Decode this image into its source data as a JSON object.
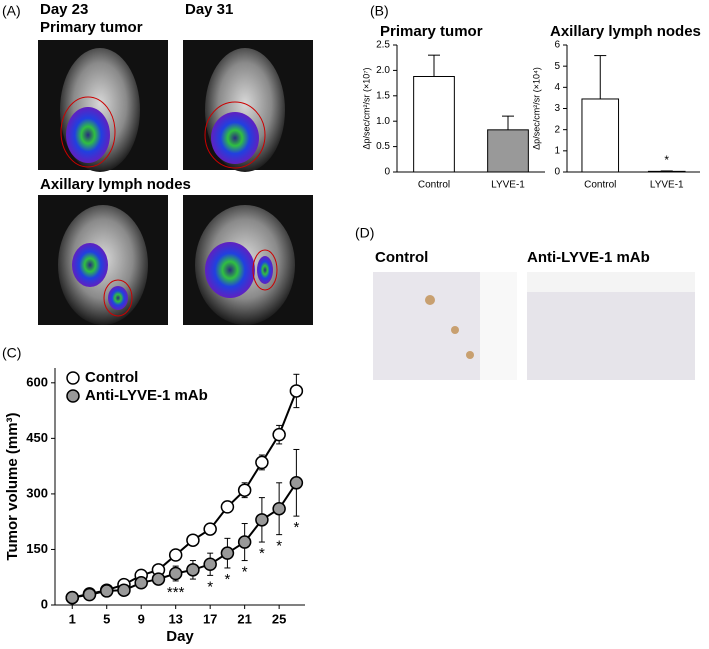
{
  "panels": [
    "(A)",
    "(B)",
    "(C)",
    "(D)"
  ],
  "panel_a": {
    "day_labels": [
      "Day 23",
      "Day 31"
    ],
    "row_labels": [
      "Primary tumor",
      "Axillary lymph nodes"
    ]
  },
  "panel_d": {
    "labels": [
      "Control",
      "Anti-LYVE-1 mAb"
    ]
  },
  "chart_data": [
    {
      "type": "bar",
      "title": "Primary tumor",
      "y_label": "Δp/sec/cm²/sr (×10⁷)",
      "categories": [
        "Control",
        "LYVE-1"
      ],
      "values": [
        1.88,
        0.83
      ],
      "errors": [
        0.42,
        0.27
      ],
      "colors": [
        "#ffffff",
        "#999999"
      ],
      "ylim": [
        0,
        2.5
      ],
      "yticks": [
        0,
        0.5,
        {
          "value": 1,
          "label": "1.0"
        },
        1.5,
        {
          "value": 2,
          "label": "2.0"
        },
        2.5
      ]
    },
    {
      "type": "bar",
      "title": "Axillary lymph nodes",
      "y_label": "Δp/sec/cm²/sr (×10⁴)",
      "categories": [
        "Control",
        "LYVE-1"
      ],
      "values": [
        3.45,
        0.03
      ],
      "errors": [
        2.05,
        0.02
      ],
      "colors": [
        "#ffffff",
        "#999999"
      ],
      "ylim": [
        0,
        6
      ],
      "yticks": [
        0,
        1,
        2,
        3,
        4,
        5,
        6
      ],
      "annotations": [
        {
          "x": "LYVE-1",
          "text": "*"
        }
      ]
    },
    {
      "type": "line",
      "x_label": "Day",
      "y_label": "Tumor volume (mm³)",
      "x": [
        1,
        3,
        5,
        7,
        9,
        11,
        13,
        15,
        17,
        19,
        21,
        23,
        25,
        27
      ],
      "series": [
        {
          "name": "Control",
          "color": "#000000",
          "marker_fill": "#ffffff",
          "values": [
            20,
            30,
            40,
            55,
            80,
            95,
            135,
            175,
            205,
            265,
            310,
            385,
            460,
            578
          ],
          "errors": [
            5,
            5,
            5,
            8,
            8,
            10,
            10,
            12,
            15,
            15,
            20,
            20,
            25,
            45
          ]
        },
        {
          "name": "Anti-LYVE-1 mAb",
          "color": "#000000",
          "marker_fill": "#999999",
          "values": [
            20,
            28,
            38,
            40,
            60,
            70,
            85,
            95,
            110,
            140,
            170,
            230,
            260,
            330
          ],
          "errors": [
            5,
            5,
            5,
            5,
            8,
            10,
            20,
            25,
            30,
            40,
            50,
            60,
            70,
            90
          ]
        }
      ],
      "annotations": [
        {
          "x": 13,
          "text": "***"
        },
        {
          "x": 17,
          "text": "*"
        },
        {
          "x": 19,
          "text": "*"
        },
        {
          "x": 21,
          "text": "*"
        },
        {
          "x": 23,
          "text": "*"
        },
        {
          "x": 25,
          "text": "*"
        },
        {
          "x": 27,
          "text": "*"
        }
      ],
      "xlim": [
        -1,
        28
      ],
      "xticks": [
        1,
        5,
        9,
        13,
        17,
        21,
        25
      ],
      "ylim": [
        0,
        640
      ],
      "yticks": [
        0,
        150,
        300,
        450,
        600
      ],
      "legend": "upper left"
    }
  ]
}
